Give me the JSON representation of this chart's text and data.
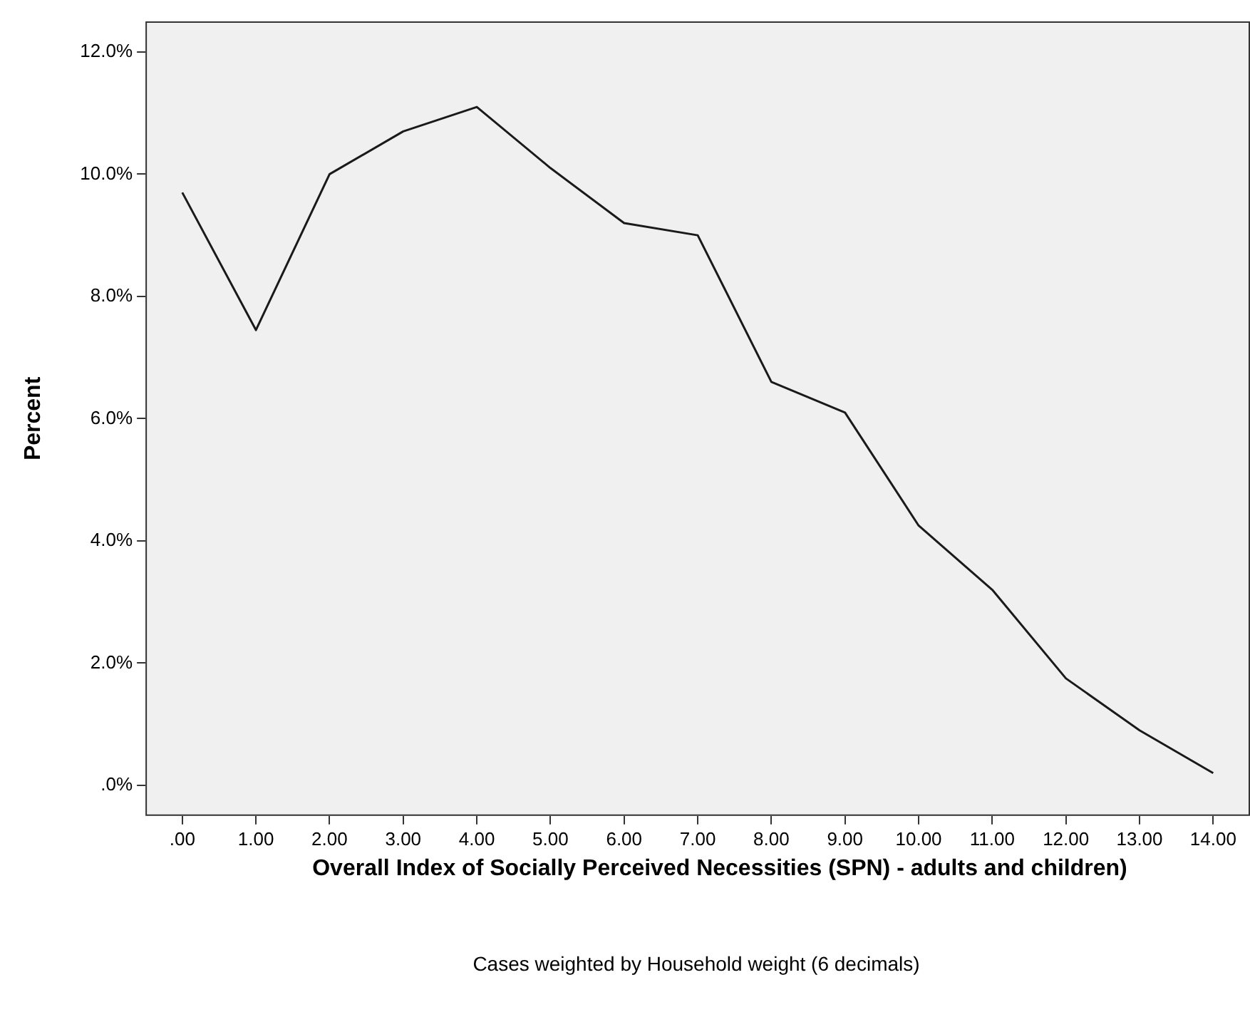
{
  "chart_data": {
    "type": "line",
    "xlabel": "Overall Index of Socially Perceived Necessities (SPN) - adults and children)",
    "ylabel": "Percent",
    "annotations": [
      "Cases weighted by Household weight (6 decimals)"
    ],
    "categories": [
      ".00",
      "1.00",
      "2.00",
      "3.00",
      "4.00",
      "5.00",
      "6.00",
      "7.00",
      "8.00",
      "9.00",
      "10.00",
      "11.00",
      "12.00",
      "13.00",
      "14.00"
    ],
    "series": [
      {
        "color": "#1a1a1a",
        "values": [
          9.7,
          7.45,
          10.0,
          10.7,
          11.1,
          10.1,
          9.2,
          9.0,
          6.6,
          6.1,
          4.25,
          3.2,
          1.75,
          0.9,
          0.2
        ]
      }
    ],
    "ylim": [
      -0.5,
      12.5
    ],
    "yticks": [
      {
        "value": 0,
        "label": ".0%"
      },
      {
        "value": 2,
        "label": "2.0%"
      },
      {
        "value": 4,
        "label": "4.0%"
      },
      {
        "value": 6,
        "label": "6.0%"
      },
      {
        "value": 8,
        "label": "8.0%"
      },
      {
        "value": 10,
        "label": "10.0%"
      },
      {
        "value": 12,
        "label": "12.0%"
      }
    ],
    "grid": false,
    "legend": false,
    "marker": "none",
    "line_style": "solid"
  }
}
